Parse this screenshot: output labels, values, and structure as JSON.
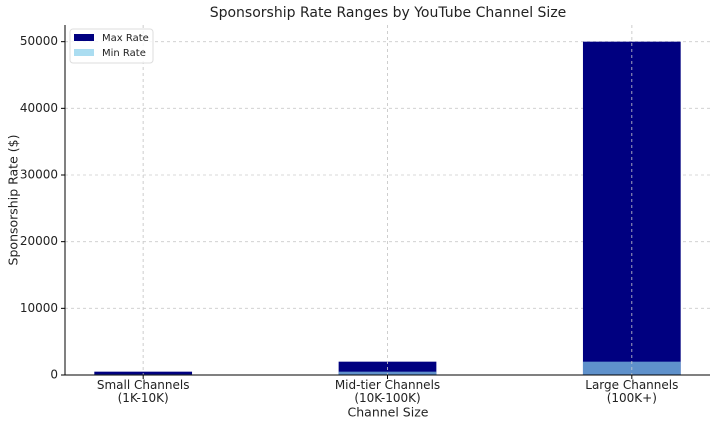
{
  "chart_data": {
    "type": "bar",
    "title": "Sponsorship Rate Ranges by YouTube Channel Size",
    "xlabel": "Channel Size",
    "ylabel": "Sponsorship Rate ($)",
    "categories": [
      "Small Channels\n(1K-10K)",
      "Mid-tier Channels\n(10K-100K)",
      "Large Channels\n(100K+)"
    ],
    "series": [
      {
        "name": "Max Rate",
        "color": "#000080",
        "alpha": 1,
        "values": [
          500,
          2000,
          50000
        ]
      },
      {
        "name": "Min Rate",
        "color": "#87ceeb",
        "alpha": 0.7,
        "values": [
          100,
          500,
          2000
        ]
      }
    ],
    "ylim": [
      0,
      52500
    ],
    "yticks": [
      0,
      10000,
      20000,
      30000,
      40000,
      50000
    ],
    "grid": true,
    "legend": "upper left"
  }
}
